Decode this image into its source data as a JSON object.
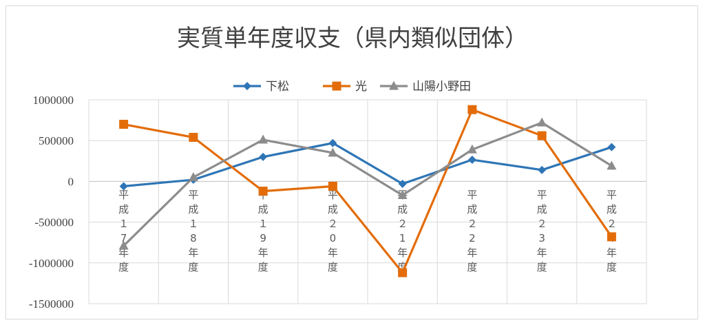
{
  "chart_data": {
    "type": "line",
    "title": "実質単年度収支（県内類似団体）",
    "categories": [
      "平成17年度",
      "平成18年度",
      "平成19年度",
      "平成20年度",
      "平成21年度",
      "平成22年度",
      "平成23年度",
      "平成24年度"
    ],
    "category_glyphs": [
      [
        "平",
        "成",
        "１",
        "7",
        "年",
        "度"
      ],
      [
        "平",
        "成",
        "１",
        "8",
        "年",
        "度"
      ],
      [
        "平",
        "成",
        "１",
        "9",
        "年",
        "度"
      ],
      [
        "平",
        "成",
        "２",
        "0",
        "年",
        "度"
      ],
      [
        "平",
        "成",
        "２",
        "1",
        "年",
        "度"
      ],
      [
        "平",
        "成",
        "２",
        "2",
        "年",
        "度"
      ],
      [
        "平",
        "成",
        "２",
        "3",
        "年",
        "度"
      ],
      [
        "平",
        "成",
        "２",
        "4",
        "年",
        "度"
      ]
    ],
    "series": [
      {
        "name": "下松",
        "color": "#2e75b6",
        "marker": "diamond",
        "values": [
          -60000,
          20000,
          300000,
          470000,
          -30000,
          265000,
          140000,
          420000
        ]
      },
      {
        "name": "光",
        "color": "#e36c09",
        "marker": "square",
        "values": [
          700000,
          540000,
          -120000,
          -60000,
          -1120000,
          880000,
          560000,
          -680000
        ]
      },
      {
        "name": "山陽小野田",
        "color": "#8c8c8c",
        "marker": "triangle",
        "values": [
          -790000,
          50000,
          510000,
          350000,
          -170000,
          390000,
          720000,
          190000
        ]
      }
    ],
    "ylim": [
      -1500000,
      1000000
    ],
    "yticks": [
      "1000000",
      "500000",
      "0",
      "-500000",
      "-1000000",
      "-1500000"
    ],
    "ytick_values": [
      1000000,
      500000,
      0,
      -500000,
      -1000000,
      -1500000
    ],
    "grid": true,
    "legend_position": "top"
  }
}
